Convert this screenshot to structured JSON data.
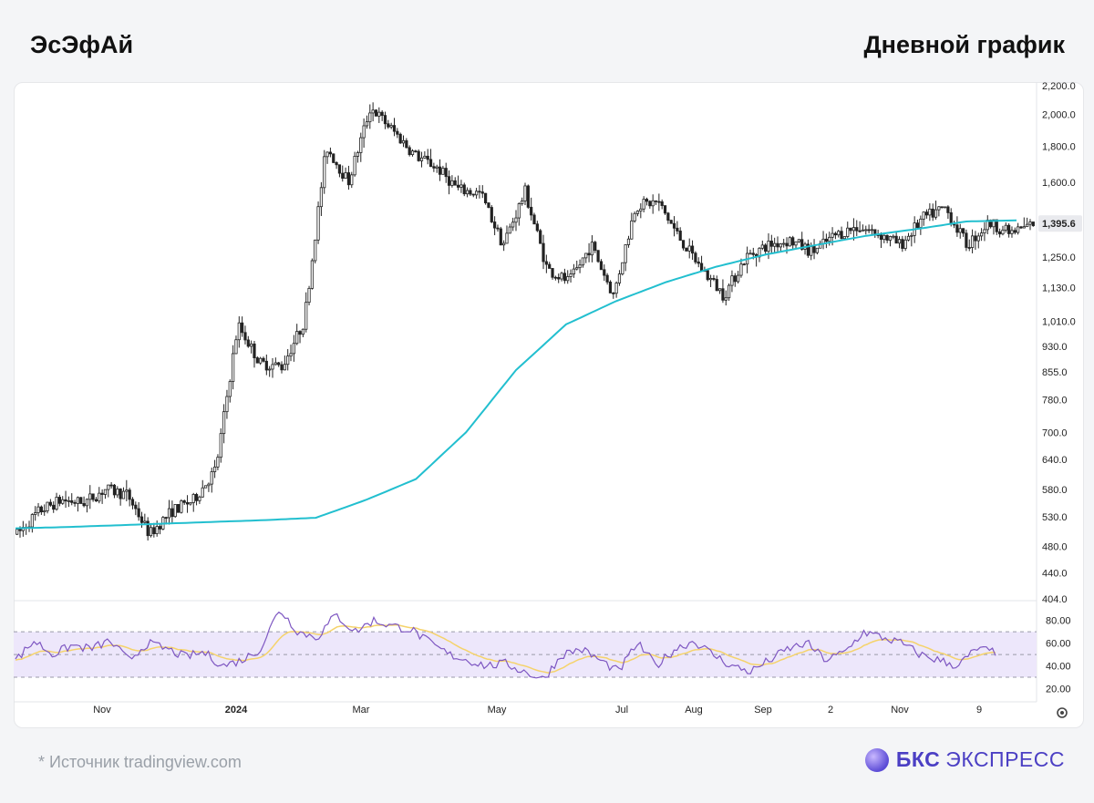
{
  "header": {
    "title": "ЭсЭфАй",
    "subtitle": "Дневной график"
  },
  "footer": {
    "source": "*  Источник tradingview.com",
    "logo_bold": "БКС",
    "logo_text": "ЭКСПРЕСС"
  },
  "colors": {
    "ma": "#22bfcf",
    "rsi": "#7e57c2",
    "rsi_ma": "#f5d36b",
    "rsi_band": "#ede7fb",
    "candle_up": "#ffffff",
    "candle_down": "#222222",
    "accent": "#4b3fc4"
  },
  "chart_data": {
    "type": "candlestick",
    "y_scale": "log",
    "price_ticks": [
      "2,200.0",
      "2,000.0",
      "1,800.0",
      "1,600.0",
      "1,395.6",
      "1,250.0",
      "1,130.0",
      "1,010.0",
      "930.0",
      "855.0",
      "780.0",
      "700.0",
      "640.0",
      "580.0",
      "530.0",
      "480.0",
      "440.0",
      "404.0"
    ],
    "last_price": "1,395.6",
    "x_labels": [
      "Nov",
      "2024",
      "Mar",
      "May",
      "Jul",
      "Aug",
      "Sep",
      "2",
      "Nov",
      "9"
    ],
    "ma_values": [
      510,
      512,
      515,
      518,
      521,
      524,
      528,
      560,
      600,
      700,
      860,
      1000,
      1080,
      1150,
      1210,
      1260,
      1300,
      1340,
      1370,
      1405,
      1410
    ],
    "price_path": [
      500,
      540,
      560,
      555,
      580,
      570,
      500,
      540,
      560,
      620,
      1000,
      880,
      870,
      1010,
      1800,
      1600,
      2050,
      1900,
      1750,
      1680,
      1560,
      1540,
      1300,
      1550,
      1200,
      1150,
      1300,
      1100,
      1480,
      1500,
      1330,
      1200,
      1100,
      1250,
      1300,
      1320,
      1270,
      1340,
      1380,
      1350,
      1300,
      1420,
      1470,
      1300,
      1400,
      1350,
      1395
    ],
    "rsi_ticks": [
      "80.00",
      "60.00",
      "40.00",
      "20.00"
    ],
    "rsi_values": [
      45,
      62,
      50,
      58,
      55,
      62,
      45,
      60,
      55,
      48,
      52,
      40,
      45,
      55,
      90,
      70,
      65,
      85,
      70,
      80,
      75,
      72,
      60,
      50,
      45,
      40,
      42,
      35,
      28,
      50,
      55,
      45,
      35,
      60,
      40,
      55,
      62,
      50,
      40,
      35,
      45,
      55,
      60,
      45,
      52,
      70,
      65,
      60,
      50,
      45,
      40,
      55,
      52
    ]
  }
}
